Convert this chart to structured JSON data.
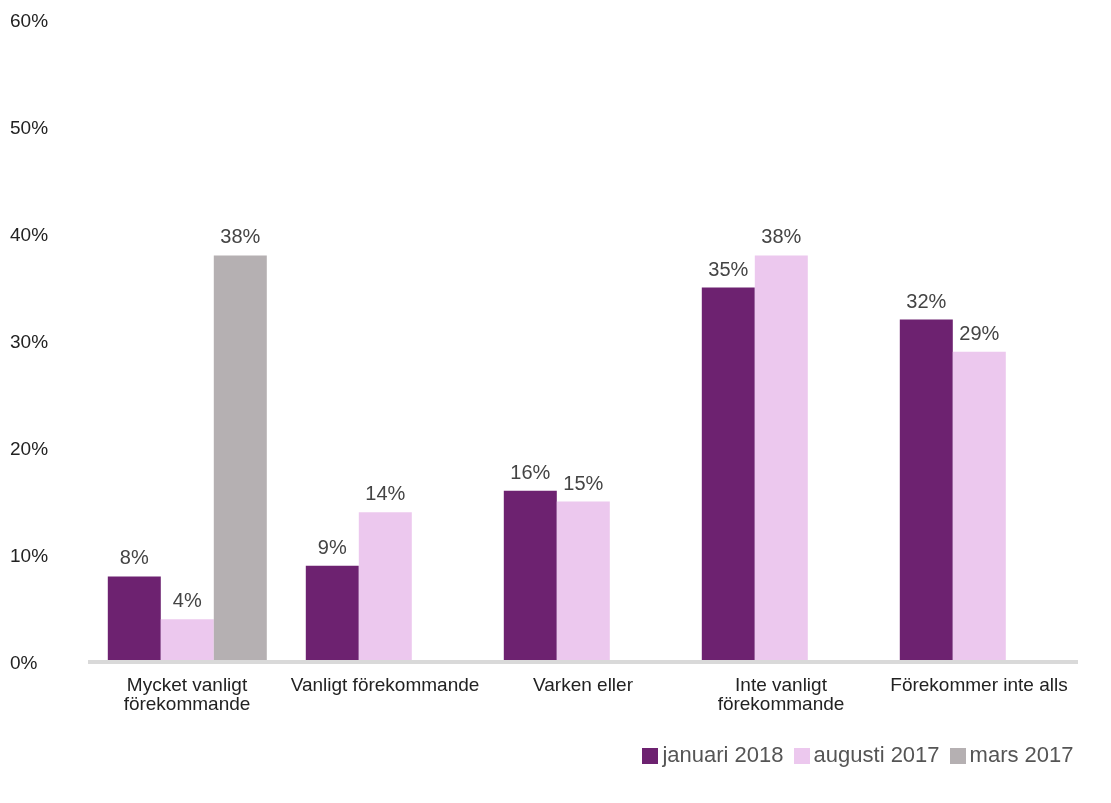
{
  "chart_data": {
    "type": "bar",
    "categories": [
      "Mycket vanligt förekommande",
      "Vanligt förekommande",
      "Varken eller",
      "Inte vanligt förekommande",
      "Förekommer inte alls"
    ],
    "series": [
      {
        "name": "januari 2018",
        "color": "#6d2270",
        "values": [
          8,
          9,
          16,
          35,
          32
        ],
        "value_labels": [
          "8%",
          "9%",
          "16%",
          "35%",
          "32%"
        ]
      },
      {
        "name": "augusti 2017",
        "color": "#ecc8ee",
        "values": [
          4,
          14,
          15,
          38,
          29
        ],
        "value_labels": [
          "4%",
          "14%",
          "15%",
          "38%",
          "29%"
        ]
      },
      {
        "name": "mars 2017",
        "color": "#b5b0b2",
        "values": [
          38,
          null,
          null,
          null,
          null
        ],
        "value_labels": [
          "38%",
          null,
          null,
          null,
          null
        ]
      }
    ],
    "ylim": [
      0,
      60
    ],
    "yticks": [
      {
        "value": 0,
        "label": "0%"
      },
      {
        "value": 10,
        "label": "10%"
      },
      {
        "value": 20,
        "label": "20%"
      },
      {
        "value": 30,
        "label": "30%"
      },
      {
        "value": 40,
        "label": "40%"
      },
      {
        "value": 50,
        "label": "50%"
      },
      {
        "value": 60,
        "label": "60%"
      }
    ],
    "legend": "bottom"
  }
}
